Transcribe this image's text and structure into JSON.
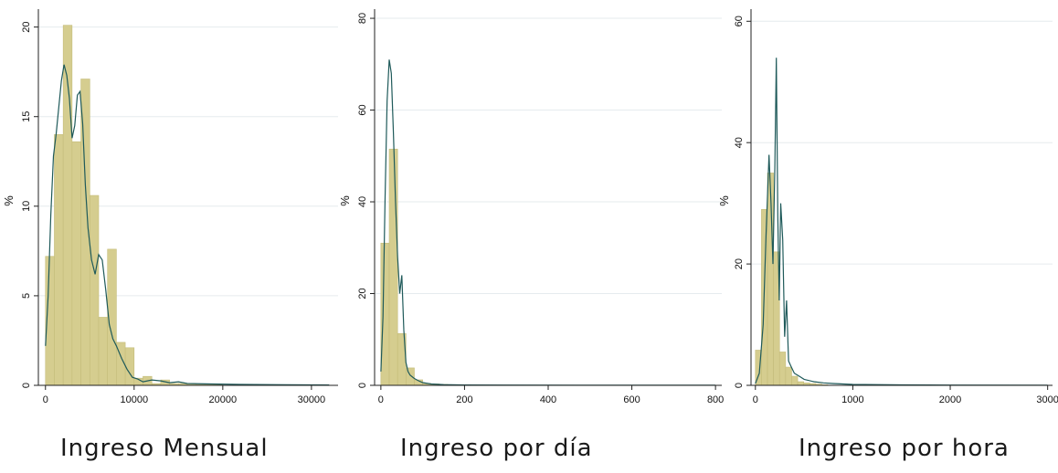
{
  "colors": {
    "bar_fill": "#d5cd8f",
    "bar_edge": "#c4bc7a",
    "density_line": "#1f5a5a",
    "grid": "#e6ebee",
    "axis": "#222222"
  },
  "chart_data": [
    {
      "type": "bar",
      "title": "",
      "caption": "Ingreso Mensual",
      "xlabel": "Ingreso Mensual",
      "ylabel": "%",
      "xlim": [
        -800,
        33000
      ],
      "ylim": [
        0,
        21
      ],
      "xticks": [
        0,
        10000,
        20000,
        30000
      ],
      "yticks": [
        0,
        5,
        10,
        15,
        20
      ],
      "grid": true,
      "bin_width": 1000,
      "bin_start": 0,
      "values": [
        7.2,
        14.0,
        20.1,
        13.6,
        17.1,
        10.6,
        3.8,
        7.6,
        2.4,
        2.1,
        0.4,
        0.5,
        0.1,
        0.3,
        0.1,
        0.1,
        0.1,
        0.05,
        0.05,
        0.05
      ],
      "density": {
        "x": [
          0,
          300,
          600,
          900,
          1200,
          1500,
          1800,
          2100,
          2400,
          2700,
          3000,
          3300,
          3600,
          3900,
          4200,
          4500,
          4800,
          5200,
          5600,
          6000,
          6400,
          6800,
          7200,
          7600,
          8000,
          8600,
          9200,
          9800,
          10400,
          11000,
          12000,
          13000,
          14000,
          15000,
          16000,
          18000,
          22000,
          27000,
          32000
        ],
        "y": [
          2.2,
          5.0,
          9.5,
          12.8,
          14.0,
          15.5,
          17.0,
          17.9,
          17.3,
          16.0,
          13.8,
          14.5,
          16.2,
          16.4,
          14.6,
          11.2,
          8.8,
          7.0,
          6.2,
          7.3,
          7.0,
          5.3,
          3.4,
          2.6,
          2.2,
          1.5,
          0.9,
          0.45,
          0.35,
          0.2,
          0.3,
          0.25,
          0.15,
          0.2,
          0.1,
          0.08,
          0.05,
          0.03,
          0.02
        ]
      }
    },
    {
      "type": "bar",
      "title": "",
      "caption": "Ingreso por día",
      "xlabel": "Ingreso por día",
      "ylabel": "%",
      "xlim": [
        -15,
        815
      ],
      "ylim": [
        0,
        82
      ],
      "xticks": [
        0,
        200,
        400,
        600,
        800
      ],
      "yticks": [
        0,
        20,
        40,
        60,
        80
      ],
      "grid": true,
      "bin_width": 20,
      "bin_start": 0,
      "values": [
        31.0,
        51.5,
        11.3,
        3.8,
        1.2,
        0.4,
        0.3,
        0.2,
        0.1,
        0.1
      ],
      "density": {
        "x": [
          0,
          5,
          10,
          15,
          20,
          25,
          30,
          35,
          40,
          45,
          50,
          55,
          60,
          65,
          70,
          80,
          90,
          100,
          120,
          150,
          200,
          300,
          500,
          800
        ],
        "y": [
          3,
          15,
          40,
          62,
          71,
          68,
          55,
          40,
          28,
          20,
          24,
          12,
          5,
          3,
          2.2,
          1.5,
          1.0,
          0.6,
          0.3,
          0.15,
          0.08,
          0.05,
          0.02,
          0.01
        ]
      }
    },
    {
      "type": "bar",
      "title": "",
      "caption": "Ingreso por hora",
      "xlabel": "Ingreso por hora",
      "ylabel": "%",
      "xlim": [
        -45,
        3050
      ],
      "ylim": [
        0,
        62
      ],
      "xticks": [
        0,
        1000,
        2000,
        3000
      ],
      "yticks": [
        0,
        20,
        40,
        60
      ],
      "grid": true,
      "bin_width": 62,
      "bin_start": 0,
      "values": [
        5.8,
        29.0,
        35.0,
        22.0,
        5.5,
        3.0,
        1.5,
        0.6,
        0.4,
        0.3,
        0.2,
        0.1
      ],
      "density": {
        "x": [
          0,
          40,
          80,
          110,
          140,
          160,
          180,
          200,
          215,
          230,
          245,
          260,
          280,
          300,
          320,
          340,
          370,
          400,
          450,
          500,
          600,
          700,
          800,
          1000,
          1500,
          2000,
          3000
        ],
        "y": [
          0.3,
          2,
          10,
          25,
          38,
          30,
          20,
          36,
          54,
          28,
          14,
          30,
          24,
          8,
          14,
          4,
          3,
          2,
          1.5,
          1,
          0.6,
          0.4,
          0.3,
          0.15,
          0.08,
          0.05,
          0.02
        ]
      }
    }
  ]
}
